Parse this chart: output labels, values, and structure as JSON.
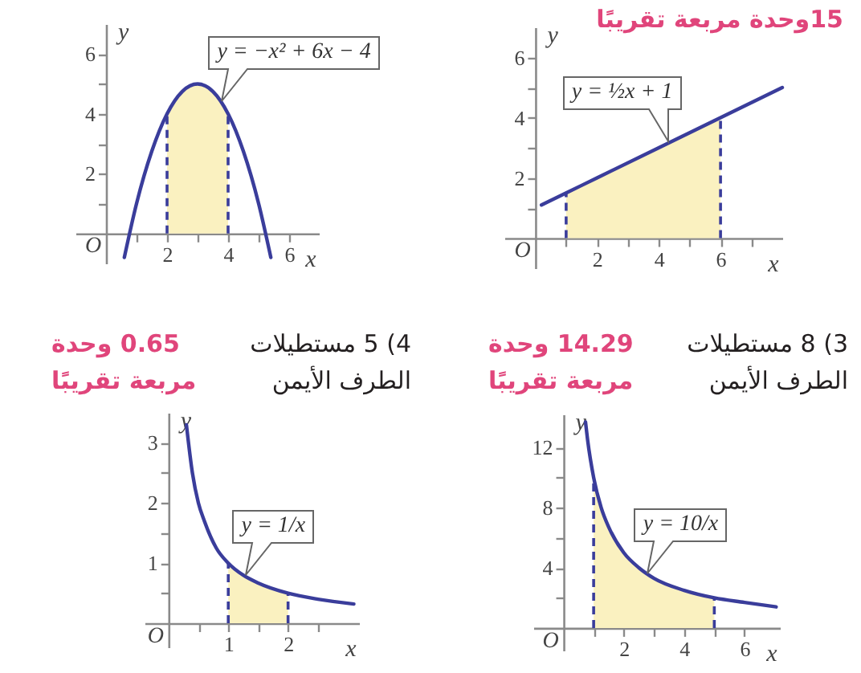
{
  "chart_data": [
    {
      "type": "line",
      "subtitle": "15وحدة مربعة تقريبًا",
      "xlabel": "x",
      "ylabel": "y",
      "series": [
        {
          "type": "area",
          "color": "#faf1c0",
          "x": [
            1,
            2,
            4,
            6
          ],
          "values": [
            1.5,
            2,
            3,
            4
          ]
        },
        {
          "type": "line",
          "color": "#3a3d9b",
          "x": [
            0.2,
            1,
            2,
            4,
            6,
            8
          ],
          "values": [
            1.1,
            1.5,
            2,
            3,
            4,
            5
          ]
        },
        {
          "type": "line",
          "line_style": "dashed",
          "color": "#3a3d9b",
          "x": [
            1,
            1
          ],
          "values": [
            0,
            1.5
          ]
        },
        {
          "type": "line",
          "line_style": "dashed",
          "color": "#3a3d9b",
          "x": [
            6,
            6
          ],
          "values": [
            0,
            4
          ]
        }
      ],
      "xlim": [
        -1,
        8
      ],
      "ylim": [
        -1,
        7
      ],
      "xticks": [
        {
          "value": 1,
          "label": null
        },
        2,
        {
          "value": 3,
          "label": null
        },
        4,
        {
          "value": 5,
          "label": null
        },
        6,
        {
          "value": 7,
          "label": null
        }
      ],
      "yticks": [
        {
          "value": 1,
          "label": null
        },
        2,
        {
          "value": 3,
          "label": null
        },
        4,
        {
          "value": 5,
          "label": null
        },
        6
      ],
      "annotations": [
        "O",
        {
          "text": "y = ½x + 1",
          "x": 4.3,
          "y": 3.2
        }
      ]
    },
    {
      "type": "line",
      "xlabel": "x",
      "ylabel": "y",
      "series": [
        {
          "type": "area",
          "color": "#faf1c0",
          "x": [
            2,
            2.5,
            3,
            3.5,
            4
          ],
          "values": [
            4,
            4.75,
            5,
            4.75,
            4
          ]
        },
        {
          "type": "line",
          "color": "#3a3d9b",
          "x": [
            0.6,
            1,
            1.5,
            2,
            2.5,
            3,
            3.5,
            4,
            4.5,
            5,
            5.4
          ],
          "values": [
            -0.8,
            1,
            2.75,
            4,
            4.75,
            5,
            4.75,
            4,
            2.75,
            1,
            -0.8
          ]
        },
        {
          "type": "line",
          "line_style": "dashed",
          "color": "#3a3d9b",
          "x": [
            2,
            2
          ],
          "values": [
            0,
            4
          ]
        },
        {
          "type": "line",
          "line_style": "dashed",
          "color": "#3a3d9b",
          "x": [
            4,
            4
          ],
          "values": [
            0,
            4
          ]
        }
      ],
      "xlim": [
        -1,
        7
      ],
      "ylim": [
        -1,
        7
      ],
      "xticks": [
        {
          "value": 1,
          "label": null
        },
        2,
        {
          "value": 3,
          "label": null
        },
        4,
        {
          "value": 5,
          "label": null
        },
        6
      ],
      "yticks": [
        {
          "value": 1,
          "label": null
        },
        2,
        {
          "value": 3,
          "label": null
        },
        4,
        {
          "value": 5,
          "label": null
        },
        6
      ],
      "annotations": [
        "O",
        {
          "text": "y = −x² + 6x − 4",
          "x": 3.8,
          "y": 4.4
        }
      ]
    },
    {
      "type": "line",
      "title": "3) 8 مستطيلات الطرف الأيمن",
      "subtitle": "14.29 وحدة مربعة تقريبًا",
      "xlabel": "x",
      "ylabel": "y",
      "series": [
        {
          "type": "area",
          "color": "#faf1c0",
          "x": [
            1,
            1.25,
            1.5,
            2,
            2.5,
            3,
            4,
            5
          ],
          "values": [
            10,
            8,
            6.7,
            5,
            4,
            3.3,
            2.5,
            2
          ]
        },
        {
          "type": "line",
          "color": "#3a3d9b",
          "x": [
            0.73,
            0.8,
            1,
            1.25,
            1.5,
            2,
            2.5,
            3,
            4,
            5,
            6,
            7.05
          ],
          "values": [
            13.7,
            12.5,
            10,
            8,
            6.7,
            5,
            4,
            3.3,
            2.5,
            2,
            1.7,
            1.4
          ]
        },
        {
          "type": "line",
          "line_style": "dashed",
          "color": "#3a3d9b",
          "x": [
            1,
            1
          ],
          "values": [
            0,
            10
          ]
        },
        {
          "type": "line",
          "line_style": "dashed",
          "color": "#3a3d9b",
          "x": [
            5,
            5
          ],
          "values": [
            0,
            2
          ]
        }
      ],
      "xlim": [
        -1,
        7.2
      ],
      "ylim": [
        -1.5,
        14.2
      ],
      "xticks": [
        {
          "value": 1,
          "label": null
        },
        2,
        {
          "value": 3,
          "label": null
        },
        4,
        {
          "value": 5,
          "label": null
        },
        6
      ],
      "yticks": [
        {
          "value": 2,
          "label": null
        },
        4,
        {
          "value": 6,
          "label": null
        },
        8,
        {
          "value": 10,
          "label": null
        },
        12
      ],
      "annotations": [
        "O",
        {
          "text": "y = 10/x",
          "x": 2.8,
          "y": 3.6
        }
      ]
    },
    {
      "type": "line",
      "title": "4) 5 مستطيلات الطرف الأيمن",
      "subtitle": "0.65 وحدة مربعة تقريبًا",
      "xlabel": "x",
      "ylabel": "y",
      "series": [
        {
          "type": "area",
          "color": "#faf1c0",
          "x": [
            1,
            1.25,
            1.5,
            2
          ],
          "values": [
            1,
            0.8,
            0.67,
            0.5
          ]
        },
        {
          "type": "line",
          "color": "#3a3d9b",
          "x": [
            0.3,
            0.4,
            0.5,
            0.6,
            0.8,
            1,
            1.25,
            1.5,
            2,
            2.5,
            3.1
          ],
          "values": [
            3.3,
            2.5,
            2,
            1.7,
            1.25,
            1,
            0.8,
            0.67,
            0.5,
            0.4,
            0.32
          ]
        },
        {
          "type": "line",
          "line_style": "dashed",
          "color": "#3a3d9b",
          "x": [
            1,
            1
          ],
          "values": [
            0,
            1
          ]
        },
        {
          "type": "line",
          "line_style": "dashed",
          "color": "#3a3d9b",
          "x": [
            2,
            2
          ],
          "values": [
            0,
            0.5
          ]
        }
      ],
      "xlim": [
        -0.4,
        3.2
      ],
      "ylim": [
        -0.4,
        3.5
      ],
      "xticks": [
        {
          "value": 0.5,
          "label": null
        },
        1,
        {
          "value": 1.5,
          "label": null
        },
        2,
        {
          "value": 2.5,
          "label": null
        }
      ],
      "yticks": [
        {
          "value": 0.5,
          "label": null
        },
        1,
        {
          "value": 1.5,
          "label": null
        },
        2,
        {
          "value": 2.5,
          "label": null
        },
        3
      ],
      "annotations": [
        "O",
        {
          "text": "y = 1/x",
          "x": 1.3,
          "y": 0.8
        }
      ]
    }
  ]
}
